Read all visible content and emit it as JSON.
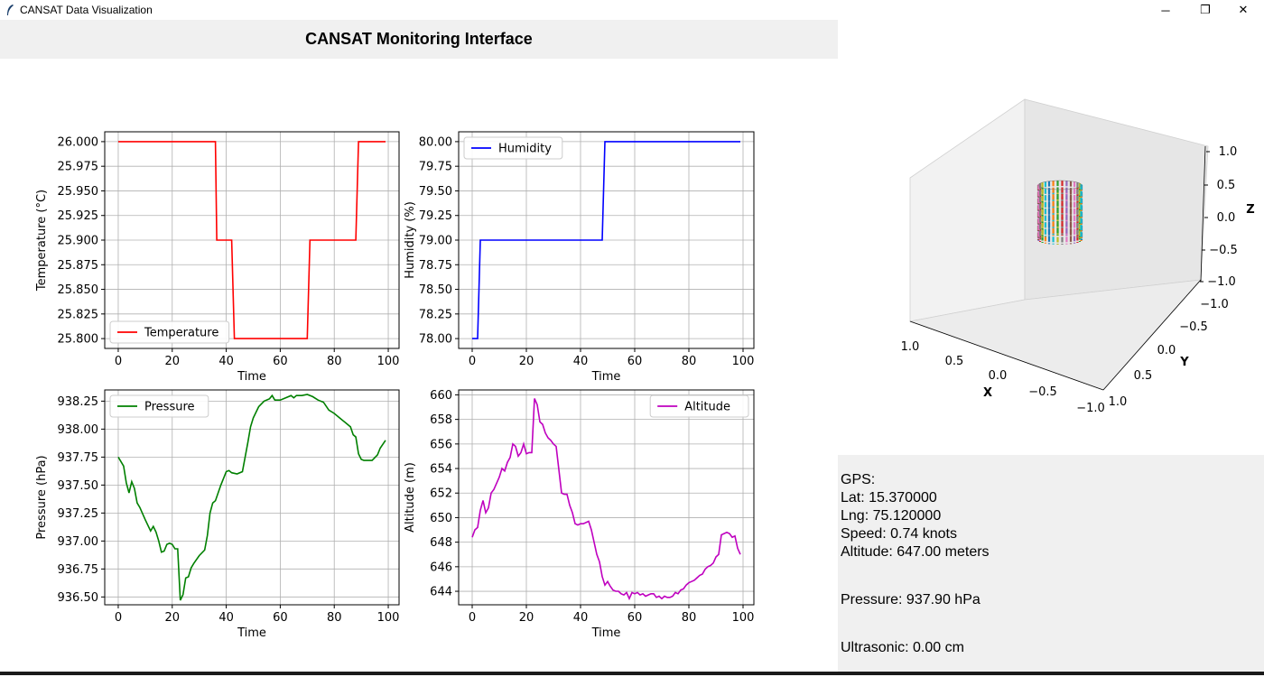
{
  "window": {
    "title": "CANSAT Data Visualization",
    "minimize": "─",
    "restore": "❐",
    "close": "✕"
  },
  "header": {
    "title": "CANSAT Monitoring Interface"
  },
  "colors": {
    "temperature": "#ff0000",
    "humidity": "#0000ff",
    "pressure": "#008000",
    "altitude": "#bf00bf",
    "panel": "#f0f0f0"
  },
  "chart_data": [
    {
      "type": "line",
      "xlabel": "Time",
      "ylabel": "Temperature (°C)",
      "legend": "upper-left of lower-left",
      "legend_position": "bottom-left",
      "xlim": [
        0,
        100
      ],
      "ylim": [
        25.79,
        26.01
      ],
      "xticks": [
        "0",
        "20",
        "40",
        "60",
        "80",
        "100"
      ],
      "yticks": [
        "25.800",
        "25.825",
        "25.850",
        "25.875",
        "25.900",
        "25.925",
        "25.950",
        "25.975",
        "26.000"
      ],
      "grid": true,
      "series": [
        {
          "name": "Temperature",
          "color": "#ff0000",
          "x": [
            0,
            36,
            36.5,
            42,
            43,
            70,
            71,
            88,
            89,
            99
          ],
          "y": [
            26.0,
            26.0,
            25.9,
            25.9,
            25.8,
            25.8,
            25.9,
            25.9,
            26.0,
            26.0
          ]
        }
      ]
    },
    {
      "type": "line",
      "xlabel": "Time",
      "ylabel": "Humidity (%)",
      "legend_position": "top-left",
      "xlim": [
        0,
        100
      ],
      "ylim": [
        77.9,
        80.1
      ],
      "xticks": [
        "0",
        "20",
        "40",
        "60",
        "80",
        "100"
      ],
      "yticks": [
        "78.00",
        "78.25",
        "78.50",
        "78.75",
        "79.00",
        "79.25",
        "79.50",
        "79.75",
        "80.00"
      ],
      "grid": true,
      "series": [
        {
          "name": "Humidity",
          "color": "#0000ff",
          "x": [
            0,
            2,
            3,
            48,
            49,
            99
          ],
          "y": [
            78.0,
            78.0,
            79.0,
            79.0,
            80.0,
            80.0
          ]
        }
      ]
    },
    {
      "type": "line",
      "xlabel": "Time",
      "ylabel": "Pressure (hPa)",
      "legend_position": "top-left",
      "xlim": [
        0,
        100
      ],
      "ylim": [
        936.43,
        938.35
      ],
      "xticks": [
        "0",
        "20",
        "40",
        "60",
        "80",
        "100"
      ],
      "yticks": [
        "936.50",
        "936.75",
        "937.00",
        "937.25",
        "937.50",
        "937.75",
        "938.00",
        "938.25"
      ],
      "grid": true,
      "series": [
        {
          "name": "Pressure",
          "color": "#008000",
          "x": [
            0,
            2,
            3,
            4,
            5,
            6,
            7,
            8,
            10,
            12,
            13,
            14,
            15,
            16,
            17,
            18,
            19,
            20,
            21,
            22,
            23,
            24,
            25,
            26,
            27,
            28,
            30,
            32,
            33,
            34,
            35,
            36,
            38,
            40,
            41,
            42,
            44,
            46,
            47,
            48,
            49,
            50,
            52,
            54,
            56,
            57,
            58,
            60,
            62,
            64,
            65,
            66,
            68,
            70,
            72,
            74,
            76,
            78,
            80,
            82,
            84,
            86,
            87,
            88,
            89,
            90,
            91,
            92,
            94,
            96,
            97,
            99
          ],
          "y": [
            937.75,
            937.67,
            937.52,
            937.43,
            937.53,
            937.47,
            937.34,
            937.3,
            937.19,
            937.09,
            937.13,
            937.08,
            937.0,
            936.9,
            936.91,
            936.97,
            936.98,
            936.97,
            936.93,
            936.93,
            936.47,
            936.52,
            936.67,
            936.68,
            936.76,
            936.8,
            936.87,
            936.92,
            937.05,
            937.25,
            937.34,
            937.36,
            937.5,
            937.62,
            937.63,
            937.61,
            937.6,
            937.62,
            937.75,
            937.88,
            938.02,
            938.1,
            938.2,
            938.25,
            938.27,
            938.3,
            938.26,
            938.26,
            938.28,
            938.3,
            938.28,
            938.3,
            938.3,
            938.31,
            938.29,
            938.26,
            938.24,
            938.17,
            938.14,
            938.1,
            938.06,
            938.02,
            937.95,
            937.93,
            937.78,
            937.73,
            937.72,
            937.72,
            937.72,
            937.77,
            937.83,
            937.9
          ]
        }
      ]
    },
    {
      "type": "line",
      "xlabel": "Time",
      "ylabel": "Altitude (m)",
      "legend_position": "top-right",
      "xlim": [
        0,
        100
      ],
      "ylim": [
        642.9,
        660.4
      ],
      "xticks": [
        "0",
        "20",
        "40",
        "60",
        "80",
        "100"
      ],
      "yticks": [
        "644",
        "646",
        "648",
        "650",
        "652",
        "654",
        "656",
        "658",
        "660"
      ],
      "grid": true,
      "series": [
        {
          "name": "Altitude",
          "color": "#bf00bf",
          "x": [
            0,
            1,
            2,
            3,
            4,
            5,
            6,
            7,
            8,
            9,
            10,
            11,
            12,
            13,
            14,
            15,
            16,
            17,
            18,
            19,
            20,
            21,
            22,
            23,
            24,
            25,
            26,
            27,
            28,
            29,
            30,
            31,
            32,
            33,
            34,
            35,
            36,
            37,
            38,
            39,
            40,
            41,
            42,
            43,
            44,
            45,
            46,
            47,
            48,
            49,
            50,
            51,
            52,
            53,
            54,
            55,
            56,
            57,
            58,
            59,
            60,
            61,
            62,
            63,
            64,
            65,
            66,
            67,
            68,
            69,
            70,
            71,
            72,
            73,
            74,
            75,
            76,
            77,
            78,
            79,
            80,
            81,
            82,
            83,
            84,
            85,
            86,
            87,
            88,
            89,
            90,
            91,
            92,
            93,
            94,
            95,
            96,
            97,
            98,
            99
          ],
          "y": [
            648.4,
            649.0,
            649.2,
            650.6,
            651.4,
            650.4,
            650.8,
            652.0,
            652.3,
            652.8,
            653.3,
            654.0,
            653.8,
            654.5,
            654.9,
            656.0,
            655.8,
            655.0,
            655.3,
            656.0,
            655.2,
            655.3,
            655.3,
            659.7,
            659.2,
            657.8,
            657.6,
            656.9,
            656.5,
            656.3,
            656.0,
            655.8,
            653.9,
            652.0,
            651.9,
            651.9,
            651.0,
            650.4,
            649.5,
            649.4,
            649.5,
            649.5,
            649.6,
            649.7,
            649.0,
            648.0,
            647.0,
            646.4,
            645.2,
            644.5,
            644.8,
            644.4,
            644.1,
            644.0,
            644.0,
            643.8,
            643.7,
            643.9,
            643.4,
            643.9,
            643.8,
            643.9,
            643.7,
            643.8,
            643.6,
            643.7,
            643.8,
            643.8,
            643.5,
            643.6,
            643.4,
            643.6,
            643.5,
            643.5,
            643.6,
            643.9,
            643.8,
            644.1,
            644.2,
            644.5,
            644.7,
            644.8,
            644.9,
            645.1,
            645.3,
            645.4,
            645.8,
            646.0,
            646.1,
            646.3,
            646.8,
            647.0,
            648.6,
            648.7,
            648.8,
            648.7,
            648.4,
            648.5,
            647.5,
            647.0
          ]
        }
      ]
    },
    {
      "type": "scatter3d",
      "xlabel": "X",
      "ylabel": "Y",
      "zlabel": "Z",
      "xticks": [
        "1.0",
        "0.5",
        "0.0",
        "−0.5",
        "−1.0"
      ],
      "yticks": [
        "−1.0",
        "−0.5",
        "0.0",
        "0.5",
        "1.0"
      ],
      "zticks": [
        "1.0",
        "0.5",
        "0.0",
        "−0.5",
        "−1.0"
      ],
      "xlim": [
        -1,
        1
      ],
      "ylim": [
        -1,
        1
      ],
      "zlim": [
        -1,
        1
      ]
    }
  ],
  "info": {
    "gps_heading": "GPS:",
    "lat": "Lat: 15.370000",
    "lng": "Lng: 75.120000",
    "speed": "Speed: 0.74 knots",
    "altitude": "Altitude: 647.00 meters",
    "pressure": "Pressure: 937.90 hPa",
    "ultrasonic": "Ultrasonic: 0.00 cm"
  }
}
